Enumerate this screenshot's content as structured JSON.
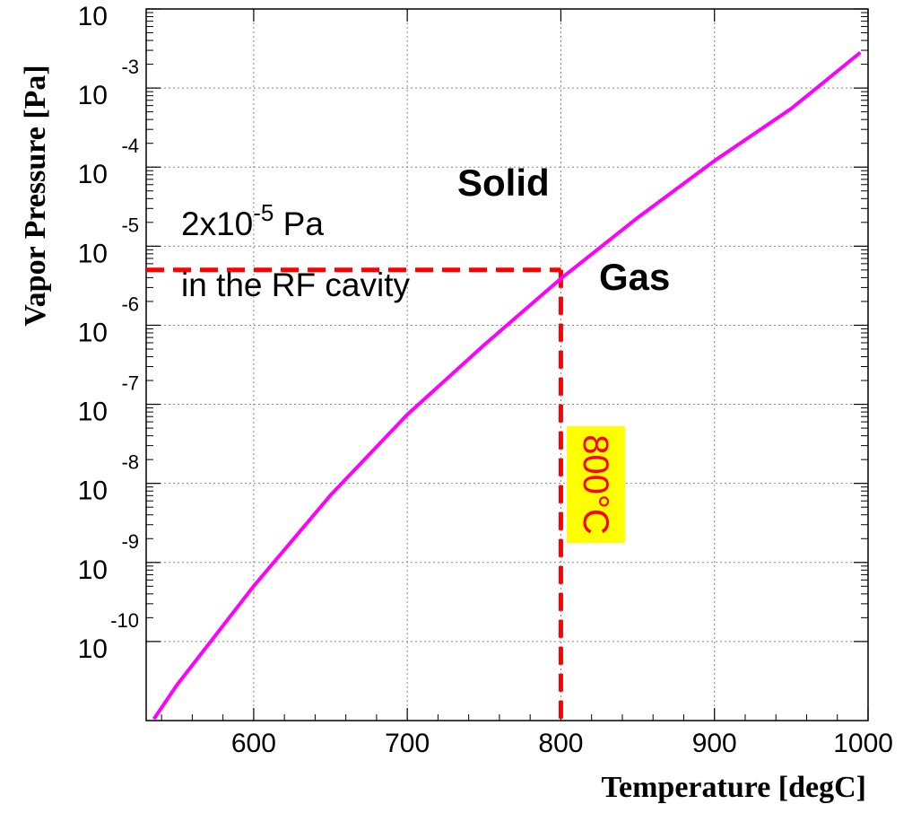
{
  "chart_data": {
    "type": "line",
    "xlabel": "Temperature   [degC]",
    "ylabel": "Vapor Pressure   [Pa]",
    "xlim": [
      530,
      1000
    ],
    "ylim_log10": [
      -11,
      -2
    ],
    "y_scale": "log",
    "grid": true,
    "x_ticks": [
      "600",
      "700",
      "800",
      "900",
      "1000"
    ],
    "y_ticks": [
      {
        "base": "10",
        "exp": "-10"
      },
      {
        "base": "10",
        "exp": "-9"
      },
      {
        "base": "10",
        "exp": "-8"
      },
      {
        "base": "10",
        "exp": "-7"
      },
      {
        "base": "10",
        "exp": "-6"
      },
      {
        "base": "10",
        "exp": "-5"
      },
      {
        "base": "10",
        "exp": "-4"
      },
      {
        "base": "10",
        "exp": "-3"
      },
      {
        "base": "10",
        "exp": ""
      }
    ],
    "series": [
      {
        "color": "#ff00ff",
        "x": [
          535,
          550,
          600,
          650,
          700,
          750,
          800,
          850,
          900,
          950,
          995
        ],
        "log10_y": [
          -10.98,
          -10.55,
          -9.3,
          -8.15,
          -7.13,
          -6.25,
          -5.41,
          -4.64,
          -3.92,
          -3.26,
          -2.55
        ]
      }
    ],
    "annotations": {
      "pressure_value": "2x10",
      "pressure_exp": "-5",
      "pressure_unit": " Pa",
      "pressure_note": "in the RF cavity",
      "temperature_label": "800°C",
      "region_solid": "Solid",
      "region_gas": "Gas",
      "marker_x": 800,
      "marker_log10_y": -5.3,
      "marker_color": "#ff0000",
      "highlight_color": "#ffff00"
    }
  }
}
